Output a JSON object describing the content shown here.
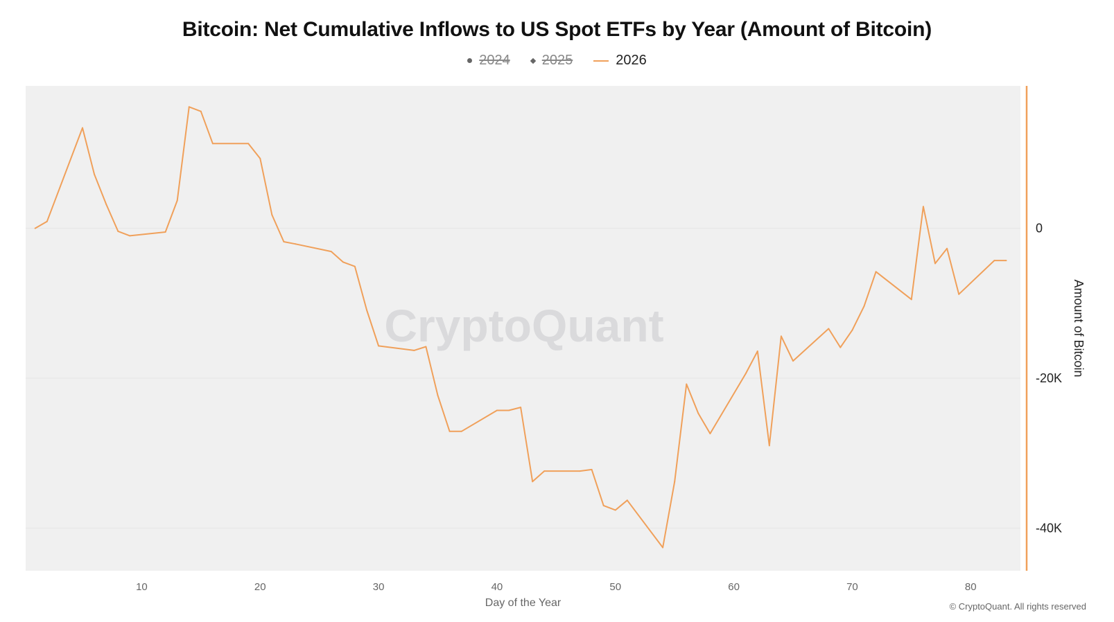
{
  "title": "Bitcoin: Net Cumulative Inflows to US Spot ETFs by Year (Amount of Bitcoin)",
  "legend": [
    {
      "label": "2024",
      "marker": "dot",
      "hidden": true
    },
    {
      "label": "2025",
      "marker": "diamond",
      "hidden": true
    },
    {
      "label": "2026",
      "marker": "line",
      "hidden": false
    }
  ],
  "watermark": "CryptoQuant",
  "copyright": "© CryptoQuant. All rights reserved",
  "colors": {
    "series_2026": "#f0a05a",
    "plot_background": "#f0f0f0",
    "hidden_legend": "#888888"
  },
  "chart_data": {
    "type": "line",
    "title": "Bitcoin: Net Cumulative Inflows to US Spot ETFs by Year (Amount of Bitcoin)",
    "xlabel": "Day of the Year",
    "ylabel": "Amount of Bitcoin",
    "x_ticks": [
      10,
      20,
      30,
      40,
      50,
      60,
      70,
      80
    ],
    "y_ticks": [
      0,
      -20000,
      -40000
    ],
    "y_tick_labels": [
      "0",
      "-20K",
      "-40K"
    ],
    "xlim": [
      0.2,
      84.2
    ],
    "ylim": [
      -45700,
      19000
    ],
    "y_axis_side": "right",
    "grid": true,
    "legend_position": "top-center",
    "series": [
      {
        "name": "2026",
        "x": [
          1,
          2,
          5,
          6,
          7,
          8,
          9,
          12,
          13,
          14,
          15,
          16,
          19,
          20,
          21,
          22,
          23,
          26,
          27,
          28,
          29,
          30,
          33,
          34,
          35,
          36,
          37,
          40,
          41,
          42,
          43,
          44,
          47,
          48,
          49,
          50,
          51,
          54,
          55,
          56,
          57,
          58,
          61,
          62,
          63,
          64,
          65,
          68,
          69,
          70,
          71,
          72,
          75,
          76,
          77,
          78,
          79,
          82,
          83
        ],
        "values": [
          0,
          900,
          13400,
          7200,
          3200,
          -400,
          -1000,
          -500,
          3700,
          16200,
          15600,
          11300,
          11300,
          9300,
          1800,
          -1800,
          -2100,
          -3100,
          -4500,
          -5100,
          -10900,
          -15700,
          -16300,
          -15800,
          -22300,
          -27100,
          -27100,
          -24300,
          -24300,
          -23900,
          -33800,
          -32400,
          -32400,
          -32200,
          -37000,
          -37600,
          -36300,
          -42600,
          -33800,
          -20800,
          -24700,
          -27400,
          -19400,
          -16400,
          -29000,
          -14400,
          -17700,
          -13400,
          -15900,
          -13600,
          -10400,
          -5800,
          -9500,
          2900,
          -4700,
          -2700,
          -8800,
          -4300,
          -4300
        ]
      }
    ]
  }
}
